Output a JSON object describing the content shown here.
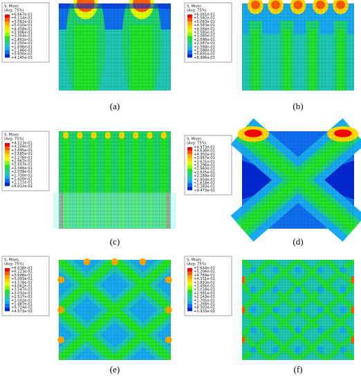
{
  "panels": [
    {
      "label": "(a)",
      "legend_title": "S, Mises",
      "legend_subtitle": "(Avg: 75%)",
      "legend_values": [
        "+6.667e-01",
        "+6.114e-01",
        "+5.562e-01",
        "+5.010e-01",
        "+4.458e-01",
        "+3.906e-01",
        "+3.354e-01",
        "+2.802e-01",
        "+2.250e-01",
        "+1.698e-01",
        "+1.146e-01",
        "+5.936e-02",
        "+4.145e-03"
      ]
    },
    {
      "label": "(b)",
      "legend_title": "S, Mises",
      "legend_subtitle": "(Avg: 75%)",
      "legend_values": [
        "+6.081e-01",
        "+5.582e-01",
        "+5.083e-01",
        "+4.583e-01",
        "+4.084e-01",
        "+3.585e-01",
        "+3.085e-01",
        "+2.586e-01",
        "+2.087e-01",
        "+1.588e-01",
        "+1.088e-01",
        "+5.891e-02",
        "+8.986e-03"
      ]
    },
    {
      "label": "(c)",
      "legend_title": "S, Mises",
      "legend_subtitle": "(Avg: 75%)",
      "legend_values": [
        "+4.513e-01",
        "+4.204e-01",
        "+3.895e-01",
        "+3.585e-01",
        "+3.276e-01",
        "+2.967e-01",
        "+2.657e-01",
        "+2.348e-01",
        "+2.039e-01",
        "+1.730e-01",
        "+1.420e-01",
        "+1.111e-01",
        "+8.012e-02"
      ]
    },
    {
      "label": "(d)",
      "legend_title": "S, Mises",
      "legend_subtitle": "(Avg: 75%)",
      "legend_values": [
        "+4.973e-01",
        "+4.638e-01",
        "+4.302e-01",
        "+3.967e-01",
        "+3.631e-01",
        "+3.296e-01",
        "+2.960e-01",
        "+2.625e-01",
        "+2.289e-01",
        "+1.954e-01",
        "+1.618e-01",
        "+1.283e-01",
        "+9.473e-02"
      ]
    },
    {
      "label": "(e)",
      "legend_title": "S, Mises",
      "legend_subtitle": "(Avg: 75%)",
      "legend_values": [
        "+6.638e-01",
        "+6.123e-01",
        "+5.608e-01",
        "+5.093e-01",
        "+4.578e-01",
        "+4.062e-01",
        "+3.547e-01",
        "+3.032e-01",
        "+2.517e-01",
        "+2.002e-01",
        "+1.487e-01",
        "+9.724e-02",
        "+4.573e-02"
      ]
    },
    {
      "label": "(f)",
      "legend_title": "S, Mises",
      "legend_subtitle": "(Avg: 75%)",
      "legend_values": [
        "+5.644e-01",
        "+5.206e-01",
        "+4.769e-01",
        "+4.331e-01",
        "+3.893e-01",
        "+3.456e-01",
        "+3.018e-01",
        "+2.581e-01",
        "+2.143e-01",
        "+1.705e-01",
        "+1.268e-01",
        "+8.302e-02",
        "+3.933e-02"
      ]
    }
  ]
}
